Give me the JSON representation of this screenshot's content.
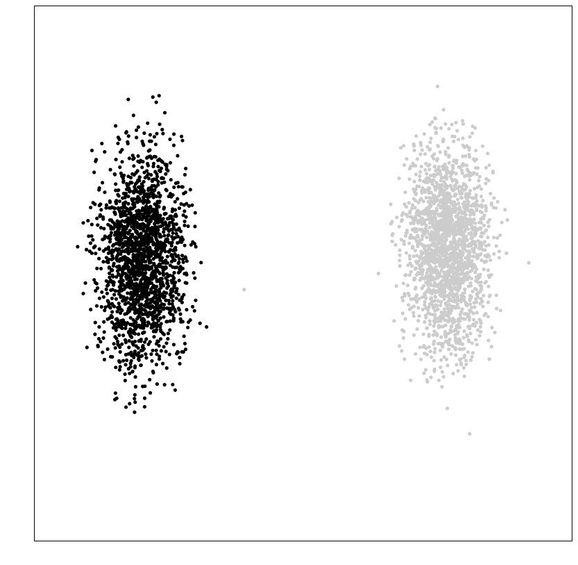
{
  "chart_data": {
    "type": "scatter",
    "title": "",
    "xlabel": "",
    "ylabel": "",
    "xlim": [
      0,
      1
    ],
    "ylim": [
      0,
      1
    ],
    "grid": false,
    "legend": "none",
    "axes_ticks": false,
    "series": [
      {
        "color": "#000000",
        "cluster": {
          "center": [
            0.2,
            0.53
          ],
          "spread": [
            0.065,
            0.165
          ],
          "count": 1900
        },
        "points": [
          [
            0.19,
            0.52
          ],
          [
            0.14,
            0.6
          ],
          [
            0.27,
            0.45
          ],
          [
            0.23,
            0.7
          ],
          [
            0.12,
            0.4
          ],
          [
            0.3,
            0.55
          ],
          [
            0.17,
            0.25
          ],
          [
            0.22,
            0.83
          ],
          [
            0.08,
            0.55
          ],
          [
            0.32,
            0.4
          ]
        ]
      },
      {
        "color": "#cccccc",
        "cluster": {
          "center": [
            0.77,
            0.55
          ],
          "spread": [
            0.062,
            0.16
          ],
          "count": 1900
        },
        "points": [
          [
            0.77,
            0.55
          ],
          [
            0.72,
            0.7
          ],
          [
            0.83,
            0.4
          ],
          [
            0.7,
            0.3
          ],
          [
            0.88,
            0.6
          ],
          [
            0.75,
            0.85
          ],
          [
            0.81,
            0.2
          ],
          [
            0.64,
            0.5
          ],
          [
            0.92,
            0.52
          ],
          [
            0.39,
            0.47
          ]
        ]
      }
    ]
  }
}
